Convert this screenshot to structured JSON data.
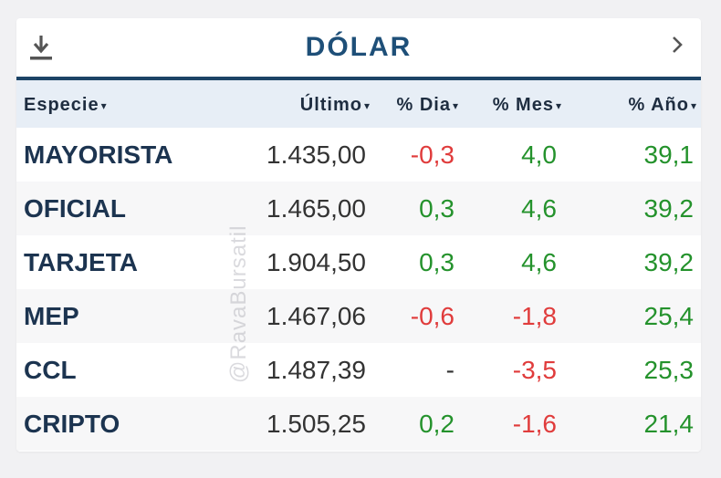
{
  "header": {
    "title": "DÓLAR",
    "download_icon": "download-icon",
    "next_icon": "chevron-right-icon"
  },
  "columns": {
    "especie": "Especie",
    "ultimo": "Último",
    "dia": "% Dia",
    "mes": "% Mes",
    "anio": "% Año",
    "sort_glyph": "▾"
  },
  "rows": [
    {
      "especie": "MAYORISTA",
      "ultimo": "1.435,00",
      "dia": "-0,3",
      "mes": "4,0",
      "anio": "39,1",
      "dia_status": "neg",
      "mes_status": "pos",
      "anio_status": "pos"
    },
    {
      "especie": "OFICIAL",
      "ultimo": "1.465,00",
      "dia": "0,3",
      "mes": "4,6",
      "anio": "39,2",
      "dia_status": "pos",
      "mes_status": "pos",
      "anio_status": "pos"
    },
    {
      "especie": "TARJETA",
      "ultimo": "1.904,50",
      "dia": "0,3",
      "mes": "4,6",
      "anio": "39,2",
      "dia_status": "pos",
      "mes_status": "pos",
      "anio_status": "pos"
    },
    {
      "especie": "MEP",
      "ultimo": "1.467,06",
      "dia": "-0,6",
      "mes": "-1,8",
      "anio": "25,4",
      "dia_status": "neg",
      "mes_status": "neg",
      "anio_status": "pos"
    },
    {
      "especie": "CCL",
      "ultimo": "1.487,39",
      "dia": "-",
      "mes": "-3,5",
      "anio": "25,3",
      "dia_status": "neu",
      "mes_status": "neg",
      "anio_status": "pos"
    },
    {
      "especie": "CRIPTO",
      "ultimo": "1.505,25",
      "dia": "0,2",
      "mes": "-1,6",
      "anio": "21,4",
      "dia_status": "pos",
      "mes_status": "neg",
      "anio_status": "pos"
    }
  ],
  "watermark": "@RavaBursatil",
  "colors": {
    "title": "#1e4f78",
    "header_rule": "#1d4466",
    "positive": "#24922c",
    "negative": "#e03c3c",
    "column_header_bg": "#e7eef6"
  }
}
